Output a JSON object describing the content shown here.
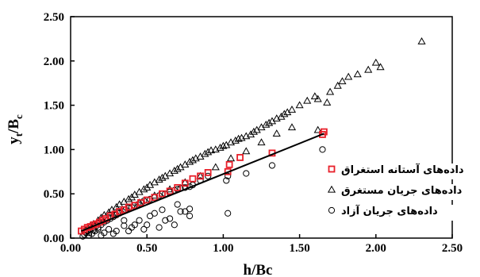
{
  "chart_data": {
    "type": "scatter",
    "title": "",
    "xlabel": "h/Bc",
    "ylabel_main": "y",
    "ylabel_sub1": "t",
    "ylabel_slash": "/B",
    "ylabel_sub2": "c",
    "xlim": [
      0,
      2.5
    ],
    "ylim": [
      0,
      2.5
    ],
    "xticks": [
      "0.00",
      "0.50",
      "1.00",
      "1.50",
      "2.00",
      "2.50"
    ],
    "yticks": [
      "0.00",
      "0.50",
      "1.00",
      "1.50",
      "2.00",
      "2.50"
    ],
    "grid": false,
    "legend_position": "right-center",
    "series": [
      {
        "name": "داده‌های آستانه استغراق",
        "marker": "square",
        "color": "#e8202a",
        "x": [
          0.07,
          0.09,
          0.11,
          0.13,
          0.15,
          0.17,
          0.19,
          0.21,
          0.23,
          0.26,
          0.29,
          0.32,
          0.35,
          0.38,
          0.42,
          0.46,
          0.5,
          0.55,
          0.6,
          0.65,
          0.7,
          0.75,
          0.8,
          0.85,
          0.9,
          1.03,
          1.04,
          1.11,
          1.32,
          1.65,
          1.66
        ],
        "y": [
          0.08,
          0.1,
          0.12,
          0.13,
          0.15,
          0.16,
          0.18,
          0.2,
          0.22,
          0.25,
          0.27,
          0.3,
          0.32,
          0.35,
          0.37,
          0.4,
          0.43,
          0.46,
          0.5,
          0.53,
          0.57,
          0.62,
          0.67,
          0.7,
          0.74,
          0.75,
          0.83,
          0.91,
          0.96,
          1.17,
          1.2
        ]
      },
      {
        "name": "داده‌های جریان مستغرق",
        "marker": "triangle",
        "color": "#000000",
        "x": [
          0.1,
          0.13,
          0.15,
          0.18,
          0.2,
          0.22,
          0.25,
          0.27,
          0.3,
          0.32,
          0.35,
          0.38,
          0.4,
          0.42,
          0.45,
          0.48,
          0.5,
          0.52,
          0.55,
          0.58,
          0.6,
          0.62,
          0.65,
          0.68,
          0.7,
          0.72,
          0.75,
          0.78,
          0.8,
          0.82,
          0.85,
          0.88,
          0.9,
          0.92,
          0.95,
          0.98,
          1.0,
          1.02,
          1.05,
          1.08,
          1.1,
          1.12,
          1.15,
          1.18,
          1.2,
          1.22,
          1.25,
          1.28,
          1.3,
          1.32,
          1.35,
          1.38,
          1.4,
          1.42,
          1.45,
          1.5,
          1.55,
          1.6,
          1.62,
          1.7,
          1.75,
          1.78,
          1.82,
          1.88,
          1.95,
          2.0,
          2.03,
          2.3,
          0.3,
          0.45,
          0.55,
          0.65,
          0.75,
          0.85,
          0.95,
          1.05,
          1.15,
          1.25,
          1.35,
          1.45,
          1.62,
          1.68
        ],
        "y": [
          0.09,
          0.14,
          0.16,
          0.2,
          0.23,
          0.26,
          0.29,
          0.32,
          0.35,
          0.38,
          0.41,
          0.44,
          0.46,
          0.49,
          0.52,
          0.55,
          0.57,
          0.6,
          0.63,
          0.66,
          0.68,
          0.7,
          0.73,
          0.76,
          0.78,
          0.8,
          0.83,
          0.86,
          0.88,
          0.9,
          0.92,
          0.95,
          0.97,
          0.99,
          1.0,
          1.02,
          1.04,
          1.05,
          1.08,
          1.1,
          1.12,
          1.13,
          1.15,
          1.17,
          1.2,
          1.22,
          1.25,
          1.28,
          1.3,
          1.32,
          1.35,
          1.37,
          1.4,
          1.42,
          1.45,
          1.5,
          1.55,
          1.6,
          1.57,
          1.65,
          1.72,
          1.77,
          1.82,
          1.85,
          1.9,
          1.98,
          1.93,
          2.22,
          0.28,
          0.4,
          0.48,
          0.55,
          0.63,
          0.7,
          0.8,
          0.9,
          0.98,
          1.08,
          1.18,
          1.25,
          1.22,
          1.53
        ]
      },
      {
        "name": "داده‌های جریان آزاد",
        "marker": "circle",
        "color": "#000000",
        "x": [
          0.08,
          0.09,
          0.1,
          0.11,
          0.12,
          0.13,
          0.14,
          0.15,
          0.16,
          0.17,
          0.18,
          0.2,
          0.22,
          0.24,
          0.26,
          0.28,
          0.3,
          0.32,
          0.34,
          0.36,
          0.38,
          0.4,
          0.42,
          0.44,
          0.46,
          0.48,
          0.5,
          0.52,
          0.55,
          0.58,
          0.6,
          0.62,
          0.65,
          0.68,
          0.7,
          0.72,
          0.75,
          0.78,
          0.8,
          0.85,
          0.9,
          1.02,
          1.03,
          1.15,
          1.32,
          1.65,
          0.12,
          0.15,
          0.18,
          0.22,
          0.25,
          0.3,
          0.35,
          0.4,
          0.45,
          0.5,
          0.55,
          0.6,
          0.65,
          0.7,
          0.78,
          0.35,
          0.42,
          0.52,
          0.62,
          0.72,
          0.78,
          0.2,
          0.28,
          0.38,
          0.48,
          0.58,
          0.68,
          0.75,
          1.03
        ],
        "y": [
          0.02,
          0.04,
          0.06,
          0.08,
          0.03,
          0.1,
          0.05,
          0.12,
          0.08,
          0.14,
          0.1,
          0.15,
          0.18,
          0.2,
          0.22,
          0.24,
          0.26,
          0.28,
          0.3,
          0.32,
          0.34,
          0.35,
          0.37,
          0.38,
          0.4,
          0.42,
          0.43,
          0.44,
          0.46,
          0.48,
          0.5,
          0.5,
          0.52,
          0.54,
          0.55,
          0.56,
          0.57,
          0.58,
          0.6,
          0.65,
          0.7,
          0.65,
          0.7,
          0.73,
          0.82,
          1.0,
          0.06,
          0.09,
          0.12,
          0.06,
          0.1,
          0.08,
          0.14,
          0.12,
          0.2,
          0.15,
          0.28,
          0.32,
          0.22,
          0.38,
          0.25,
          0.2,
          0.15,
          0.25,
          0.2,
          0.3,
          0.33,
          0.03,
          0.05,
          0.08,
          0.1,
          0.12,
          0.15,
          0.3,
          0.28
        ]
      }
    ],
    "trendline": {
      "x": [
        0.07,
        1.66
      ],
      "y": [
        0.08,
        1.18
      ]
    }
  }
}
